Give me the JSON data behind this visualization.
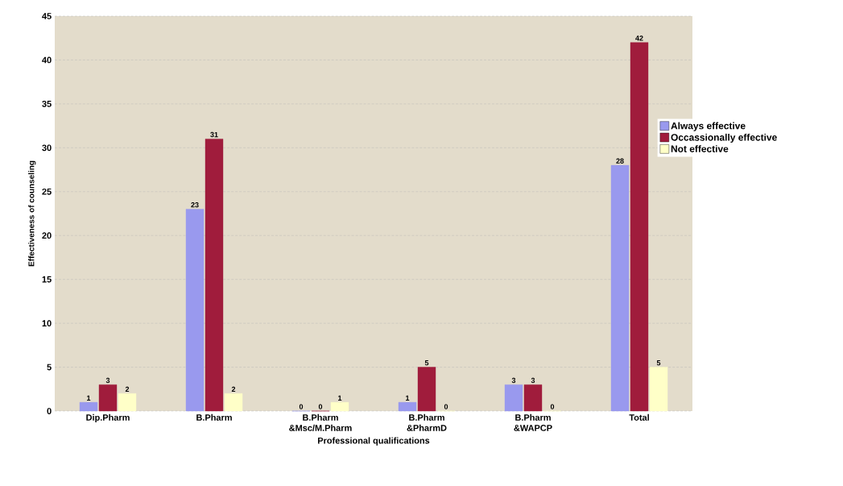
{
  "chart_data": {
    "type": "bar",
    "xlabel": "Professional qualifications",
    "ylabel": "Effectiveness of counseling",
    "categories": [
      "Dip.Pharm",
      "B.Pharm",
      "B.Pharm &Msc/M.Pharm",
      "B.Pharm &PharmD",
      "B.Pharm &WAPCP",
      "Total"
    ],
    "series": [
      {
        "name": "Always effective",
        "color": "#9999ee",
        "values": [
          1,
          23,
          0,
          1,
          3,
          28
        ]
      },
      {
        "name": "Occassionally effective",
        "color": "#a01c3c",
        "values": [
          3,
          31,
          0,
          5,
          3,
          42
        ]
      },
      {
        "name": "Not effective",
        "color": "#ffffc8",
        "values": [
          2,
          2,
          1,
          0,
          0,
          5
        ]
      }
    ],
    "ylim": [
      0,
      45
    ],
    "yticks": [
      0,
      5,
      10,
      15,
      20,
      25,
      30,
      35,
      40,
      45
    ],
    "grid": "y",
    "legend": "right",
    "data_labels": true
  }
}
